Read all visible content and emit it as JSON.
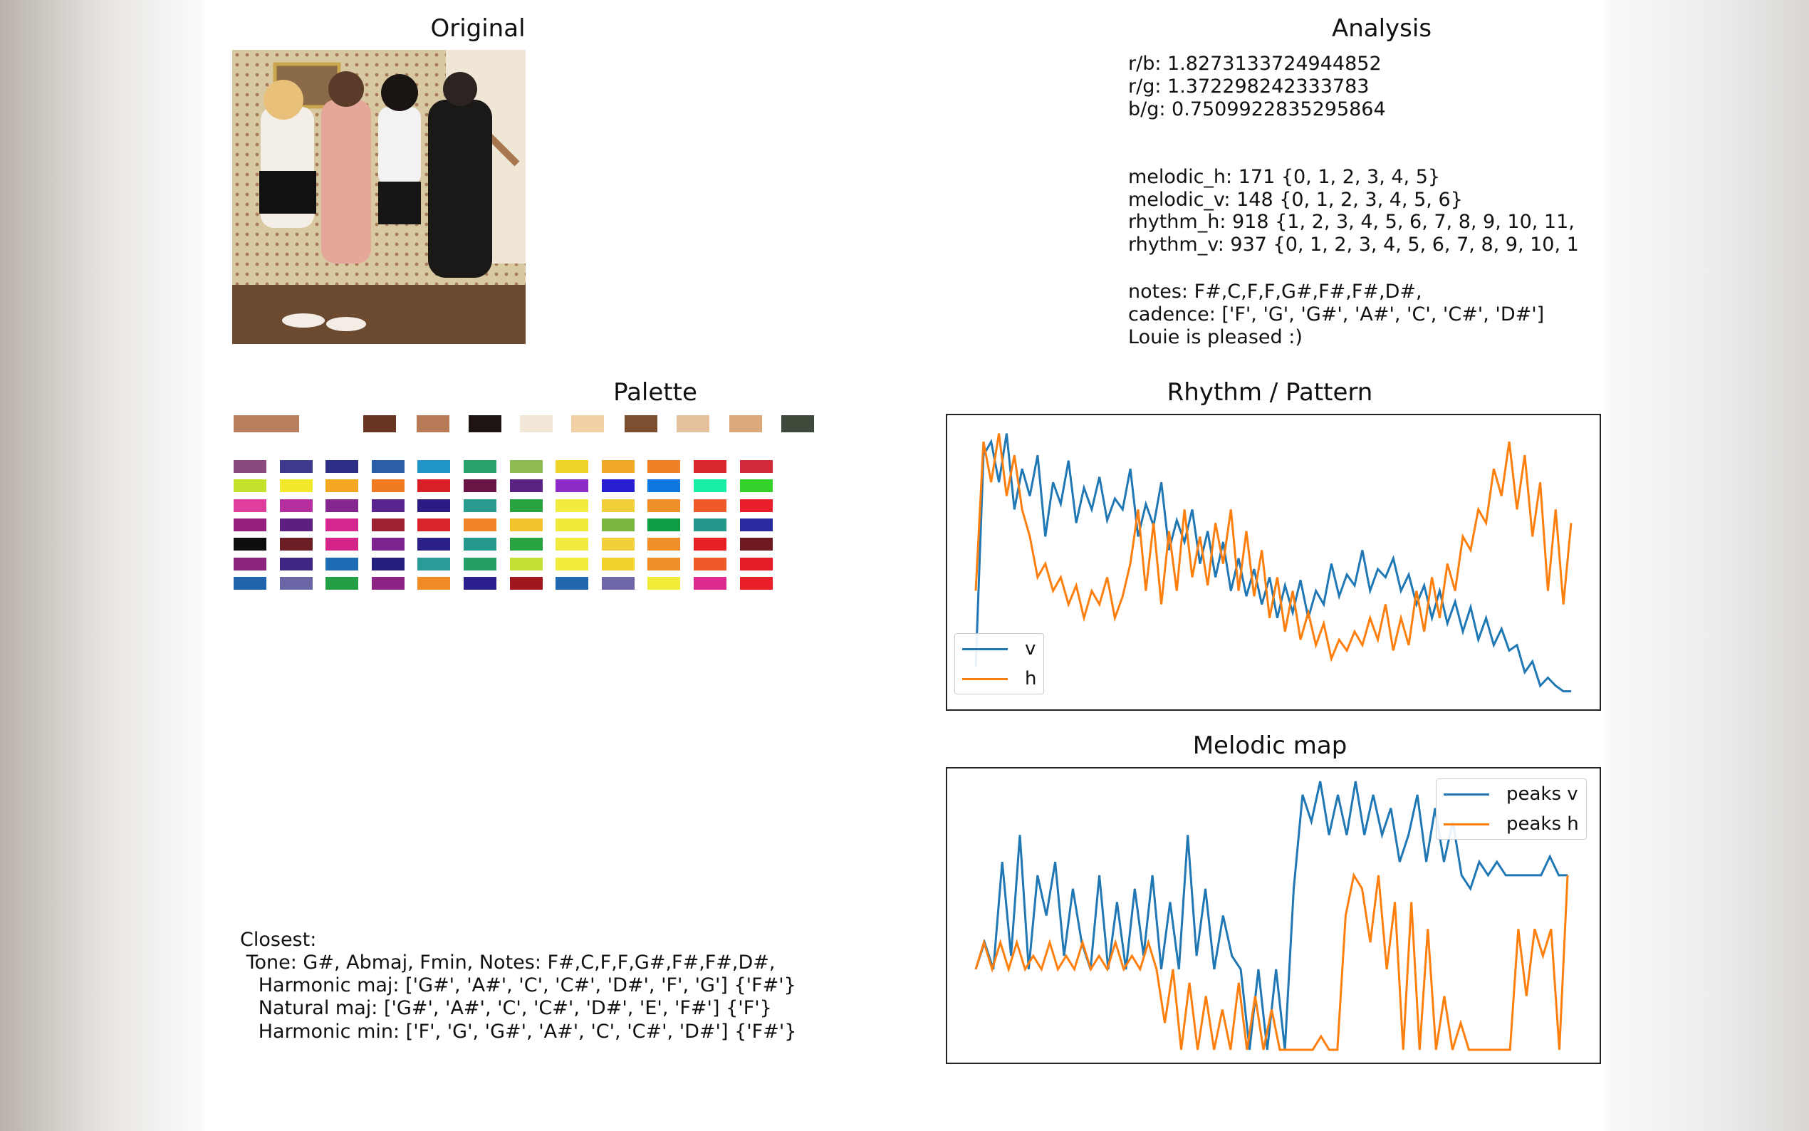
{
  "titles": {
    "original": "Original",
    "analysis": "Analysis",
    "palette": "Palette",
    "rhythm": "Rhythm / Pattern",
    "melodic": "Melodic map"
  },
  "analysis": {
    "ratios": [
      "r/b: 1.8273133724944852",
      "r/g: 1.372298242333783",
      "b/g: 0.7509922835295864"
    ],
    "patterns": [
      "melodic_h: 171 {0, 1, 2, 3, 4, 5}",
      "melodic_v: 148 {0, 1, 2, 3, 4, 5, 6}",
      "rhythm_h: 918 {1, 2, 3, 4, 5, 6, 7, 8, 9, 10, 11,",
      "rhythm_v: 937 {0, 1, 2, 3, 4, 5, 6, 7, 8, 9, 10, 1"
    ],
    "notes": [
      "notes: F#,C,F,F,G#,F#,F#,D#,",
      "cadence: ['F', 'G', 'G#', 'A#', 'C', 'C#', 'D#']",
      "Louie is pleased :)"
    ]
  },
  "closest": [
    "Closest:",
    " Tone: G#, Abmaj, Fmin, Notes: F#,C,F,F,G#,F#,F#,D#,",
    "   Harmonic maj: ['G#', 'A#', 'C', 'C#', 'D#', 'F', 'G'] {'F#'}",
    "   Natural maj: ['G#', 'A#', 'C', 'C#', 'D#', 'E', 'F#'] {'F'}",
    "   Harmonic min: ['F', 'G', 'G#', 'A#', 'C', 'C#', 'D#'] {'F#'}"
  ],
  "palette_colors": [
    "#b87f5f",
    "#ffffff",
    "#6a3520",
    "#b77b57",
    "#1e1413",
    "#f2e6d6",
    "#f2d2a4",
    "#7b4f30",
    "#e6c19d",
    "#dcaa7a",
    "#3f4b3a"
  ],
  "palette_grid": [
    [
      "#8b4a7e",
      "#3d3a8c",
      "#2f2e86",
      "#2a5ea8",
      "#2194c9",
      "#27a36b",
      "#8dbb4f",
      "#efd32a",
      "#f0a826",
      "#f08125",
      "#d9282d",
      "#d3283a"
    ],
    [
      "#c4e12c",
      "#f3e82b",
      "#f5a623",
      "#f07b22",
      "#d81f26",
      "#6b1446",
      "#5a2282",
      "#8c2bc6",
      "#2a1fd0",
      "#1177e0",
      "#17f0a4",
      "#35d02a"
    ],
    [
      "#e03e9f",
      "#b62f9e",
      "#86268f",
      "#5b238e",
      "#2c1b82",
      "#2a9c8f",
      "#28a340",
      "#f3ec40",
      "#f1cf3b",
      "#f08e2a",
      "#ef5a2a",
      "#e81e2b"
    ],
    [
      "#97207f",
      "#5e2080",
      "#d5268e",
      "#9e2132",
      "#d8242b",
      "#f08427",
      "#f2c42c",
      "#f2ea3b",
      "#7bb641",
      "#109e45",
      "#26988b",
      "#2a2aa0"
    ],
    [
      "#0d0d0d",
      "#6b1e23",
      "#d5248a",
      "#7b238f",
      "#2a2088",
      "#27988d",
      "#28a340",
      "#f2ec41",
      "#f1d03c",
      "#f08e2a",
      "#e61f25",
      "#6e1a1e"
    ],
    [
      "#8c237f",
      "#402684",
      "#1b6cb4",
      "#231d7d",
      "#2a9c98",
      "#24a066",
      "#c6df36",
      "#f2ec3a",
      "#f2d22c",
      "#f08e27",
      "#ef5b28",
      "#e51d25"
    ],
    [
      "#2164ae",
      "#6b66a6",
      "#23a046",
      "#8e2386",
      "#f08a25",
      "#2a1f8c",
      "#a0171e",
      "#2167b0",
      "#6e68a8",
      "#f1ec38",
      "#dc2a8e",
      "#e81f26"
    ]
  ],
  "chart_data": [
    {
      "type": "line",
      "title": "Rhythm / Pattern",
      "series": [
        {
          "name": "v",
          "color": "#1f77b4",
          "values": [
            0.12,
            0.9,
            0.95,
            0.8,
            0.98,
            0.7,
            0.85,
            0.75,
            0.9,
            0.6,
            0.8,
            0.72,
            0.88,
            0.65,
            0.78,
            0.7,
            0.82,
            0.66,
            0.74,
            0.7,
            0.85,
            0.6,
            0.72,
            0.64,
            0.8,
            0.55,
            0.66,
            0.58,
            0.7,
            0.5,
            0.62,
            0.45,
            0.58,
            0.4,
            0.52,
            0.38,
            0.48,
            0.35,
            0.45,
            0.3,
            0.42,
            0.32,
            0.44,
            0.3,
            0.4,
            0.35,
            0.5,
            0.38,
            0.46,
            0.42,
            0.55,
            0.4,
            0.48,
            0.45,
            0.52,
            0.4,
            0.46,
            0.35,
            0.42,
            0.3,
            0.4,
            0.28,
            0.36,
            0.25,
            0.34,
            0.22,
            0.3,
            0.2,
            0.26,
            0.18,
            0.2,
            0.1,
            0.14,
            0.05,
            0.08,
            0.05,
            0.03,
            0.03
          ]
        },
        {
          "name": "h",
          "color": "#ff7f0e",
          "values": [
            0.4,
            0.95,
            0.8,
            0.98,
            0.75,
            0.9,
            0.7,
            0.6,
            0.45,
            0.5,
            0.4,
            0.45,
            0.35,
            0.42,
            0.3,
            0.4,
            0.35,
            0.45,
            0.3,
            0.38,
            0.5,
            0.7,
            0.4,
            0.65,
            0.35,
            0.62,
            0.4,
            0.7,
            0.45,
            0.6,
            0.42,
            0.65,
            0.5,
            0.7,
            0.4,
            0.62,
            0.38,
            0.55,
            0.3,
            0.45,
            0.25,
            0.4,
            0.22,
            0.32,
            0.2,
            0.28,
            0.15,
            0.22,
            0.18,
            0.25,
            0.2,
            0.3,
            0.22,
            0.35,
            0.18,
            0.3,
            0.2,
            0.4,
            0.25,
            0.45,
            0.3,
            0.5,
            0.4,
            0.6,
            0.55,
            0.7,
            0.65,
            0.85,
            0.75,
            0.95,
            0.7,
            0.9,
            0.6,
            0.8,
            0.4,
            0.7,
            0.35,
            0.65
          ]
        }
      ]
    },
    {
      "type": "line",
      "title": "Melodic map",
      "series": [
        {
          "name": "peaks v",
          "color": "#1f77b4",
          "values": [
            0.3,
            0.4,
            0.3,
            0.7,
            0.35,
            0.8,
            0.3,
            0.65,
            0.5,
            0.7,
            0.35,
            0.6,
            0.4,
            0.3,
            0.65,
            0.3,
            0.55,
            0.3,
            0.6,
            0.35,
            0.65,
            0.3,
            0.55,
            0.3,
            0.8,
            0.35,
            0.6,
            0.3,
            0.5,
            0.35,
            0.3,
            0.0,
            0.3,
            0.0,
            0.3,
            0.0,
            0.6,
            0.95,
            0.85,
            1.0,
            0.8,
            0.95,
            0.8,
            1.0,
            0.8,
            0.95,
            0.8,
            0.9,
            0.7,
            0.8,
            0.95,
            0.7,
            0.9,
            0.7,
            0.85,
            0.65,
            0.6,
            0.7,
            0.65,
            0.7,
            0.65,
            0.65,
            0.65,
            0.65,
            0.65,
            0.72,
            0.65,
            0.65
          ]
        },
        {
          "name": "peaks h",
          "color": "#ff7f0e",
          "values": [
            0.3,
            0.4,
            0.3,
            0.4,
            0.3,
            0.4,
            0.3,
            0.35,
            0.3,
            0.4,
            0.3,
            0.35,
            0.3,
            0.4,
            0.3,
            0.35,
            0.3,
            0.4,
            0.3,
            0.35,
            0.3,
            0.4,
            0.3,
            0.1,
            0.3,
            0.0,
            0.25,
            0.0,
            0.2,
            0.0,
            0.15,
            0.0,
            0.25,
            0.0,
            0.2,
            0.0,
            0.15,
            0.0,
            0.0,
            0.0,
            0.0,
            0.0,
            0.05,
            0.0,
            0.0,
            0.5,
            0.65,
            0.6,
            0.4,
            0.65,
            0.3,
            0.55,
            0.0,
            0.55,
            0.0,
            0.45,
            0.0,
            0.2,
            0.0,
            0.1,
            0.0,
            0.0,
            0.0,
            0.0,
            0.0,
            0.0,
            0.45,
            0.2,
            0.45,
            0.35,
            0.45,
            0.0,
            0.65
          ]
        }
      ]
    }
  ]
}
